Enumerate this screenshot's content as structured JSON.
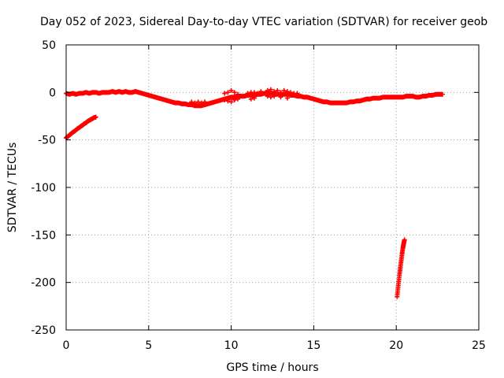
{
  "chart_data": {
    "type": "scatter",
    "title": "Day 052 of 2023, Sidereal Day-to-day VTEC variation (SDTVAR) for receiver geob",
    "xlabel": "GPS time / hours",
    "ylabel": "SDTVAR / TECUs",
    "xlim": [
      0,
      25
    ],
    "ylim": [
      -250,
      50
    ],
    "xticks": [
      0,
      5,
      10,
      15,
      20,
      25
    ],
    "yticks": [
      50,
      0,
      -50,
      -100,
      -150,
      -200,
      -250
    ],
    "xtick_labels": [
      "0",
      "5",
      "10",
      "15",
      "20",
      "25"
    ],
    "ytick_labels": [
      "50",
      "0",
      "-50",
      "-100",
      "-150",
      "-200",
      "-250"
    ],
    "grid": true,
    "marker": "plus",
    "color": "#ff0000",
    "series": [
      {
        "name": "main-arc",
        "x": [
          0.0,
          0.2,
          0.4,
          0.6,
          0.8,
          1.0,
          1.2,
          1.4,
          1.6,
          1.8,
          2.0,
          2.2,
          2.4,
          2.6,
          2.8,
          3.0,
          3.2,
          3.4,
          3.6,
          3.8,
          4.0,
          4.2,
          4.4,
          4.6,
          4.8,
          5.0,
          5.2,
          5.4,
          5.6,
          5.8,
          6.0,
          6.2,
          6.4,
          6.6,
          6.8,
          7.0,
          7.2,
          7.4,
          7.6,
          7.8,
          8.0,
          8.2,
          8.4,
          8.6,
          8.8,
          9.0,
          9.2,
          9.4,
          9.6,
          9.8,
          10.0,
          10.2,
          10.4,
          10.6,
          10.8,
          11.0,
          11.2,
          11.4,
          11.6,
          11.8,
          12.0,
          12.2,
          12.4,
          12.6,
          12.8,
          13.0,
          13.2,
          13.4,
          13.6,
          13.8,
          14.0,
          14.2,
          14.4,
          14.6,
          14.8,
          15.0,
          15.2,
          15.4,
          15.6,
          15.8,
          16.0,
          16.2,
          16.4,
          16.6,
          16.8,
          17.0,
          17.2,
          17.4,
          17.6,
          17.8,
          18.0,
          18.2,
          18.4,
          18.6,
          18.8,
          19.0,
          19.2,
          19.4,
          19.6,
          19.8,
          20.0,
          20.2,
          20.4,
          20.6,
          20.8,
          21.0,
          21.2,
          21.4,
          21.6,
          21.8,
          22.0,
          22.2,
          22.4,
          22.6,
          22.8
        ],
        "y": [
          -1,
          -2,
          -1,
          -2,
          -1,
          -1,
          0,
          -1,
          0,
          0,
          -1,
          0,
          0,
          0,
          1,
          0,
          1,
          0,
          1,
          0,
          0,
          1,
          0,
          -1,
          -2,
          -3,
          -4,
          -5,
          -6,
          -7,
          -8,
          -9,
          -10,
          -11,
          -11,
          -12,
          -12,
          -13,
          -13,
          -14,
          -14,
          -14,
          -13,
          -12,
          -11,
          -10,
          -9,
          -8,
          -7,
          -6,
          -5,
          -5,
          -4,
          -4,
          -4,
          -3,
          -3,
          -3,
          -2,
          -2,
          -1,
          -1,
          -1,
          -1,
          -2,
          -2,
          -2,
          -2,
          -3,
          -3,
          -4,
          -4,
          -5,
          -5,
          -6,
          -7,
          -8,
          -9,
          -10,
          -10,
          -11,
          -11,
          -11,
          -11,
          -11,
          -11,
          -10,
          -10,
          -9,
          -9,
          -8,
          -7,
          -7,
          -6,
          -6,
          -6,
          -5,
          -5,
          -5,
          -5,
          -5,
          -5,
          -5,
          -4,
          -4,
          -4,
          -5,
          -5,
          -4,
          -4,
          -3,
          -3,
          -2,
          -2,
          -2
        ]
      },
      {
        "name": "main-arc-spread",
        "x": [
          7.6,
          7.8,
          8.0,
          8.2,
          8.4,
          9.6,
          9.8,
          10.0,
          10.2,
          10.4,
          11.0,
          11.2,
          11.4,
          11.6,
          11.8,
          12.2,
          12.4,
          12.6,
          12.8,
          13.0,
          13.2,
          13.4,
          13.6,
          13.8,
          14.0,
          9.6,
          9.8,
          10.0,
          10.2,
          10.4,
          11.2,
          11.4,
          12.2,
          12.4,
          12.6,
          13.0,
          13.4
        ],
        "y": [
          -10,
          -11,
          -10,
          -11,
          -10,
          -1,
          0,
          2,
          0,
          -2,
          -1,
          0,
          0,
          -1,
          1,
          2,
          3,
          1,
          2,
          0,
          2,
          1,
          0,
          -1,
          -1,
          -8,
          -9,
          -10,
          -8,
          -7,
          -7,
          -6,
          -4,
          -5,
          -4,
          -5,
          -6
        ]
      },
      {
        "name": "early-arc",
        "x": [
          0.0,
          0.1,
          0.2,
          0.3,
          0.4,
          0.5,
          0.6,
          0.7,
          0.8,
          0.9,
          1.0,
          1.1,
          1.2,
          1.3,
          1.4,
          1.5,
          1.6,
          1.7,
          1.8
        ],
        "y": [
          -48,
          -46.5,
          -45,
          -43.5,
          -42,
          -41,
          -39.5,
          -38,
          -37,
          -35.5,
          -34.5,
          -33,
          -32,
          -30.5,
          -29.5,
          -28.5,
          -27.5,
          -26.5,
          -26
        ]
      },
      {
        "name": "late-arc",
        "x": [
          20.05,
          20.1,
          20.15,
          20.2,
          20.25,
          20.3,
          20.35,
          20.4,
          20.45,
          20.5
        ],
        "y": [
          -215,
          -207,
          -199,
          -191,
          -184,
          -177,
          -170,
          -164,
          -159,
          -155
        ]
      }
    ]
  }
}
